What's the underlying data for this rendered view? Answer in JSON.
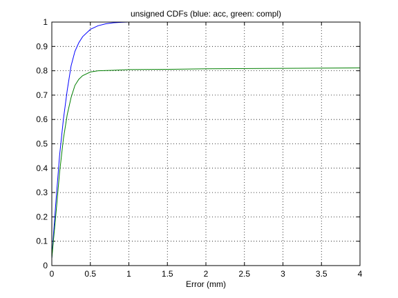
{
  "chart_data": {
    "type": "line",
    "title": "unsigned CDFs (blue: acc, green: compl)",
    "x_label": "Error (mm)",
    "series": [
      {
        "color": "#0000ff",
        "x": [
          0,
          0.02,
          0.05,
          0.1,
          0.15,
          0.2,
          0.25,
          0.3,
          0.35,
          0.4,
          0.5,
          0.6,
          0.7,
          0.8,
          0.9,
          1.0,
          1.5,
          2.0,
          2.45
        ],
        "values": [
          0.03,
          0.12,
          0.25,
          0.45,
          0.6,
          0.72,
          0.82,
          0.88,
          0.915,
          0.94,
          0.97,
          0.985,
          0.993,
          0.997,
          0.999,
          1.0,
          1.0,
          1.0,
          1.0
        ]
      },
      {
        "color": "#007f00",
        "x": [
          0,
          0.02,
          0.05,
          0.1,
          0.15,
          0.2,
          0.25,
          0.3,
          0.35,
          0.4,
          0.5,
          0.6,
          0.8,
          1.0,
          1.5,
          2.0,
          3.0,
          4.0
        ],
        "values": [
          0.03,
          0.1,
          0.2,
          0.38,
          0.52,
          0.62,
          0.69,
          0.74,
          0.765,
          0.78,
          0.795,
          0.8,
          0.802,
          0.805,
          0.806,
          0.808,
          0.81,
          0.812
        ]
      }
    ],
    "xlim": [
      0,
      4
    ],
    "xticks": [
      0,
      0.5,
      1,
      1.5,
      2,
      2.5,
      3,
      3.5,
      4
    ],
    "ylim": [
      0,
      1
    ],
    "yticks": [
      0,
      0.1,
      0.2,
      0.3,
      0.4,
      0.5,
      0.6,
      0.7,
      0.8,
      0.9,
      1
    ],
    "grid": true
  }
}
